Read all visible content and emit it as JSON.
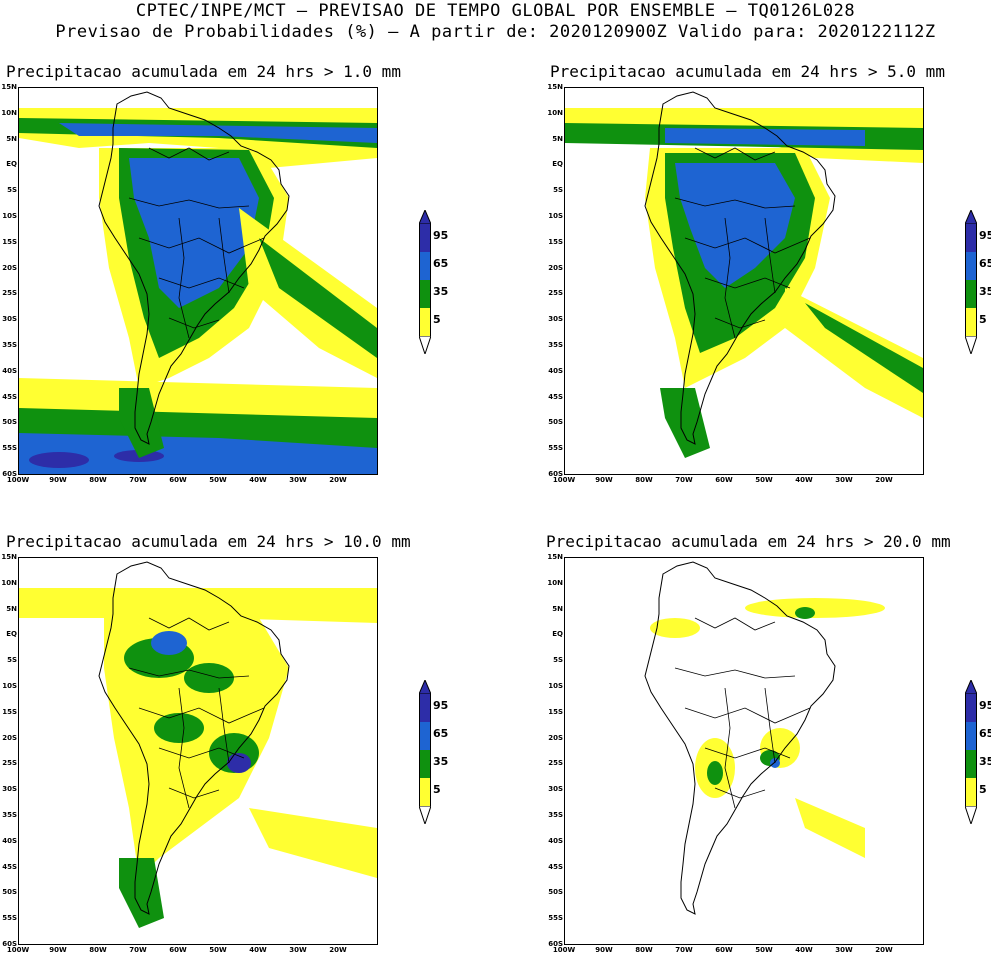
{
  "header": {
    "line1": "CPTEC/INPE/MCT – PREVISAO DE TEMPO GLOBAL POR ENSEMBLE – TQ0126L028",
    "line2": "Previsao de Probabilidades (%) –  A partir de: 2020120900Z  Valido para: 2020122112Z"
  },
  "axes": {
    "lat_labels": [
      "15N",
      "10N",
      "5N",
      "EQ",
      "5S",
      "10S",
      "15S",
      "20S",
      "25S",
      "30S",
      "35S",
      "40S",
      "45S",
      "50S",
      "55S",
      "60S"
    ],
    "lon_labels": [
      "100W",
      "90W",
      "80W",
      "70W",
      "60W",
      "50W",
      "40W",
      "30W",
      "20W"
    ]
  },
  "colorbar": {
    "labels": [
      "95",
      "65",
      "35",
      "5"
    ],
    "colors": {
      "c95": "#2d2da8",
      "c65": "#1e64d2",
      "c35": "#0f910f",
      "c5": "#ffff32"
    }
  },
  "panels": [
    {
      "title": "Precipitacao acumulada em 24 hrs > 1.0 mm",
      "threshold_mm": 1.0
    },
    {
      "title": "Precipitacao acumulada em 24 hrs > 5.0 mm",
      "threshold_mm": 5.0
    },
    {
      "title": "Precipitacao acumulada em 24 hrs > 10.0 mm",
      "threshold_mm": 10.0
    },
    {
      "title": "Precipitacao acumulada em 24 hrs > 20.0 mm",
      "threshold_mm": 20.0
    }
  ]
}
